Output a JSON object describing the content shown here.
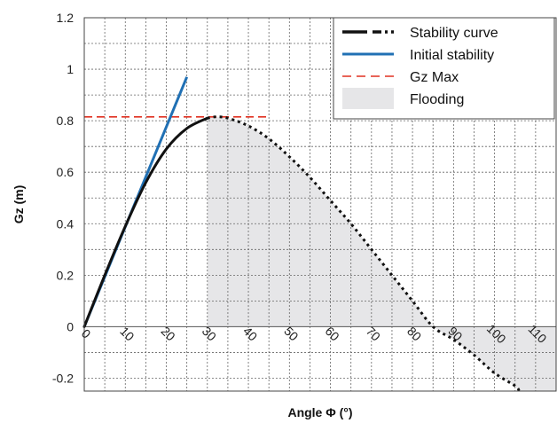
{
  "chart_data": {
    "type": "line",
    "title": "",
    "xlabel": "Angle Φ (°)",
    "ylabel": "Gz (m)",
    "xlim": [
      0,
      115
    ],
    "ylim": [
      -0.25,
      1.2
    ],
    "x_ticks": [
      0,
      10,
      20,
      30,
      40,
      50,
      60,
      70,
      80,
      90,
      100,
      110
    ],
    "x_tick_labels": [
      "0",
      "10",
      "20",
      "30",
      "40",
      "50",
      "60",
      "70",
      "80",
      "90",
      "100",
      "110"
    ],
    "y_ticks": [
      -0.2,
      0,
      0.2,
      0.4,
      0.6,
      0.8,
      1,
      1.2
    ],
    "y_tick_labels": [
      "-0.2",
      "0",
      "0.2",
      "0.4",
      "0.6",
      "0.8",
      "1",
      "1.2"
    ],
    "grid": true,
    "legend_position": "top-right",
    "series": [
      {
        "name": "Stability curve",
        "style": "solid-then-dotted",
        "color": "#111111",
        "x": [
          0,
          5,
          10,
          15,
          20,
          25,
          30,
          32,
          35,
          40,
          45,
          50,
          55,
          60,
          65,
          70,
          75,
          80,
          85,
          90,
          95,
          100,
          105,
          106
        ],
        "y": [
          0,
          0.2,
          0.39,
          0.56,
          0.69,
          0.77,
          0.81,
          0.815,
          0.81,
          0.78,
          0.73,
          0.66,
          0.58,
          0.49,
          0.4,
          0.3,
          0.2,
          0.1,
          0.0,
          -0.05,
          -0.11,
          -0.18,
          -0.23,
          -0.25
        ],
        "dotted_from_x": 30
      },
      {
        "name": "Initial stability",
        "style": "solid",
        "color": "#2070b4",
        "x": [
          0,
          25
        ],
        "y": [
          0,
          0.97
        ]
      },
      {
        "name": "Gz Max",
        "style": "dashed",
        "color": "#e03020",
        "x": [
          0,
          45
        ],
        "y": [
          0.815,
          0.815
        ]
      },
      {
        "name": "Flooding",
        "style": "area",
        "color": "#e6e6e8",
        "x_from": 30
      }
    ]
  }
}
